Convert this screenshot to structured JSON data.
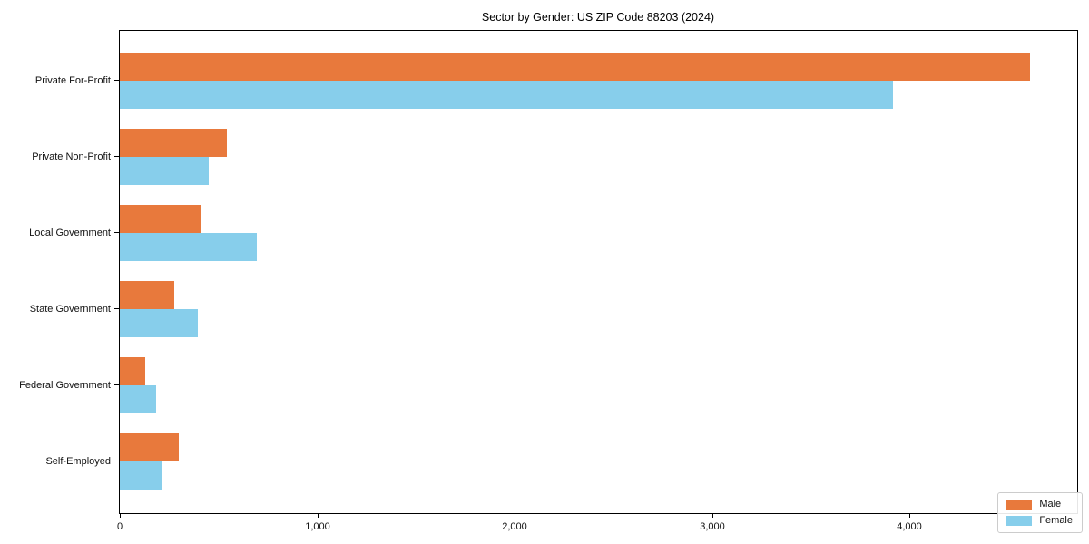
{
  "chart_data": {
    "type": "bar",
    "orientation": "horizontal",
    "title": "Sector by Gender: US ZIP Code 88203 (2024)",
    "categories": [
      "Private For-Profit",
      "Private Non-Profit",
      "Local Government",
      "State Government",
      "Federal Government",
      "Self-Employed"
    ],
    "series": [
      {
        "name": "Male",
        "color": "#E8793C",
        "values": [
          4610,
          541,
          413,
          275,
          128,
          298
        ]
      },
      {
        "name": "Female",
        "color": "#87CEEB",
        "values": [
          3917,
          450,
          693,
          394,
          183,
          211
        ]
      }
    ],
    "xlabel": "",
    "ylabel": "",
    "xlim": [
      0,
      4845
    ],
    "xticks": [
      0,
      1000,
      2000,
      3000,
      4000
    ],
    "xtick_labels": [
      "0",
      "1,000",
      "2,000",
      "3,000",
      "4,000"
    ],
    "grid": false,
    "legend_position": "lower right",
    "axis_color": "#000000"
  }
}
